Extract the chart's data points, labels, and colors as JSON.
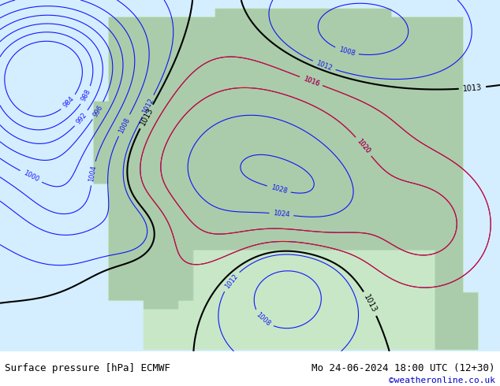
{
  "title_left": "Surface pressure [hPa] ECMWF",
  "title_right": "Mo 24-06-2024 18:00 UTC (12+30)",
  "watermark": "©weatheronline.co.uk",
  "watermark_color": "#0000cc",
  "bg_color": "#aad4aa",
  "land_color": "#cceecc",
  "sea_color": "#d4eeff",
  "text_color": "#000000",
  "label_fontsize": 8,
  "title_fontsize": 9,
  "figsize": [
    6.34,
    4.9
  ],
  "dpi": 100,
  "contour_blue_color": "#0000ff",
  "contour_black_color": "#000000",
  "contour_red_color": "#ff0000"
}
